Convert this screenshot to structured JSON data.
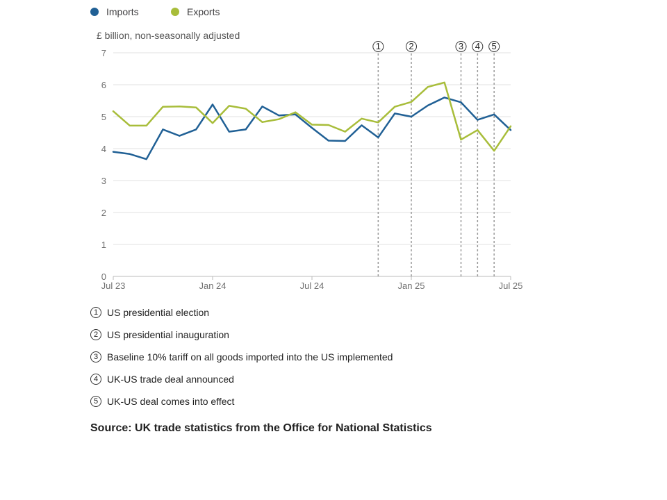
{
  "chart_data": {
    "type": "line",
    "unit_label": "£ billion, non-seasonally adjusted",
    "x": [
      "2023-07",
      "2023-08",
      "2023-09",
      "2023-10",
      "2023-11",
      "2023-12",
      "2024-01",
      "2024-02",
      "2024-03",
      "2024-04",
      "2024-05",
      "2024-06",
      "2024-07",
      "2024-08",
      "2024-09",
      "2024-10",
      "2024-11",
      "2024-12",
      "2025-01",
      "2025-02",
      "2025-03",
      "2025-04",
      "2025-05",
      "2025-06",
      "2025-07"
    ],
    "xticks": [
      {
        "x": "2023-07",
        "label": "Jul 23"
      },
      {
        "x": "2024-01",
        "label": "Jan 24"
      },
      {
        "x": "2024-07",
        "label": "Jul 24"
      },
      {
        "x": "2025-01",
        "label": "Jan 25"
      },
      {
        "x": "2025-07",
        "label": "Jul 25"
      }
    ],
    "yticks": [
      0,
      1,
      2,
      3,
      4,
      5,
      6,
      7
    ],
    "ylim": [
      0,
      7
    ],
    "grid": true,
    "legend_position": "top-left",
    "series": [
      {
        "name": "Imports",
        "color": "#206095",
        "values": [
          3.9,
          3.83,
          3.67,
          4.6,
          4.4,
          4.6,
          5.38,
          4.53,
          4.6,
          5.32,
          5.04,
          5.07,
          4.65,
          4.25,
          4.24,
          4.73,
          4.35,
          5.1,
          5.0,
          5.35,
          5.6,
          5.45,
          4.9,
          5.07,
          4.58
        ]
      },
      {
        "name": "Exports",
        "color": "#a8bd3a",
        "values": [
          5.17,
          4.72,
          4.72,
          5.31,
          5.32,
          5.29,
          4.8,
          5.34,
          5.25,
          4.83,
          4.92,
          5.14,
          4.75,
          4.74,
          4.53,
          4.94,
          4.82,
          5.31,
          5.46,
          5.93,
          6.07,
          4.28,
          4.58,
          3.93,
          4.7
        ]
      }
    ],
    "events": [
      {
        "x": "2024-11",
        "marker": "①",
        "label": "US presidential election"
      },
      {
        "x": "2025-01",
        "marker": "②",
        "label": "US presidential inauguration"
      },
      {
        "x": "2025-04",
        "marker": "③",
        "label": "Baseline 10% tariff on all goods imported into the US implemented"
      },
      {
        "x": "2025-05",
        "marker": "④",
        "label": "UK-US trade deal announced"
      },
      {
        "x": "2025-06",
        "marker": "⑤",
        "label": "UK-US deal comes into effect"
      }
    ]
  },
  "source": "Source: UK trade statistics from the Office for National Statistics"
}
